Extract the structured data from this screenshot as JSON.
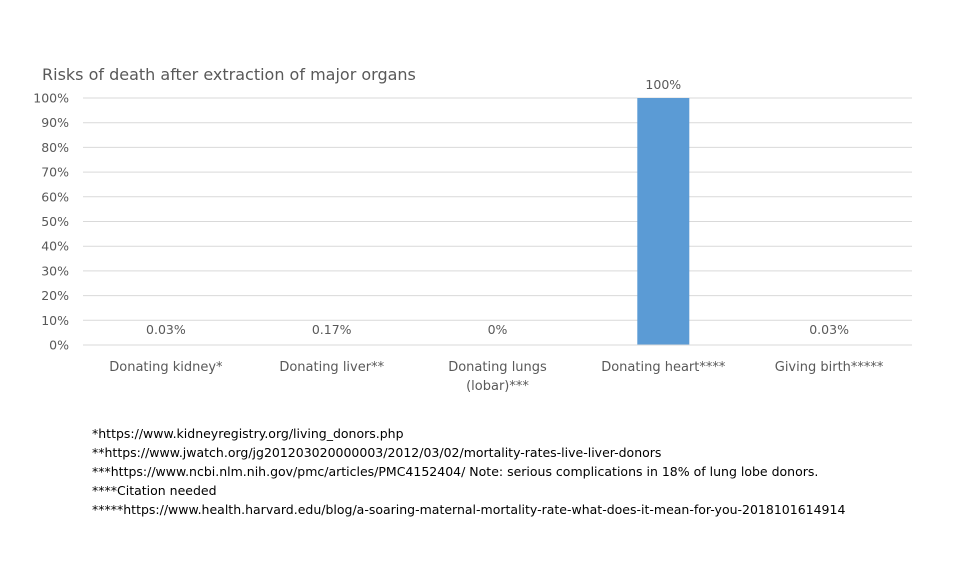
{
  "chart_data": {
    "type": "bar",
    "title": "Risks of death after extraction of major organs",
    "categories": [
      [
        "Donating kidney*"
      ],
      [
        "Donating liver**"
      ],
      [
        "Donating lungs",
        "(lobar)***"
      ],
      [
        "Donating heart****"
      ],
      [
        "Giving birth*****"
      ]
    ],
    "values": [
      0.03,
      0.17,
      0,
      100,
      0.03
    ],
    "data_labels": [
      "0.03%",
      "0.17%",
      "0%",
      "100%",
      "0.03%"
    ],
    "ylim": [
      0,
      100
    ],
    "yticks": [
      0,
      10,
      20,
      30,
      40,
      50,
      60,
      70,
      80,
      90,
      100
    ],
    "ytick_labels": [
      "0%",
      "10%",
      "20%",
      "30%",
      "40%",
      "50%",
      "60%",
      "70%",
      "80%",
      "90%",
      "100%"
    ],
    "grid": true,
    "bar_color": "#5B9BD5",
    "grid_color": "#D9D9D9"
  },
  "footnotes": [
    "*https://www.kidneyregistry.org/living_donors.php",
    "**https://www.jwatch.org/jg201203020000003/2012/03/02/mortality-rates-live-liver-donors",
    "***https://www.ncbi.nlm.nih.gov/pmc/articles/PMC4152404/  Note: serious complications in 18% of lung lobe donors.",
    "****Citation needed",
    "*****https://www.health.harvard.edu/blog/a-soaring-maternal-mortality-rate-what-does-it-mean-for-you-2018101614914"
  ]
}
